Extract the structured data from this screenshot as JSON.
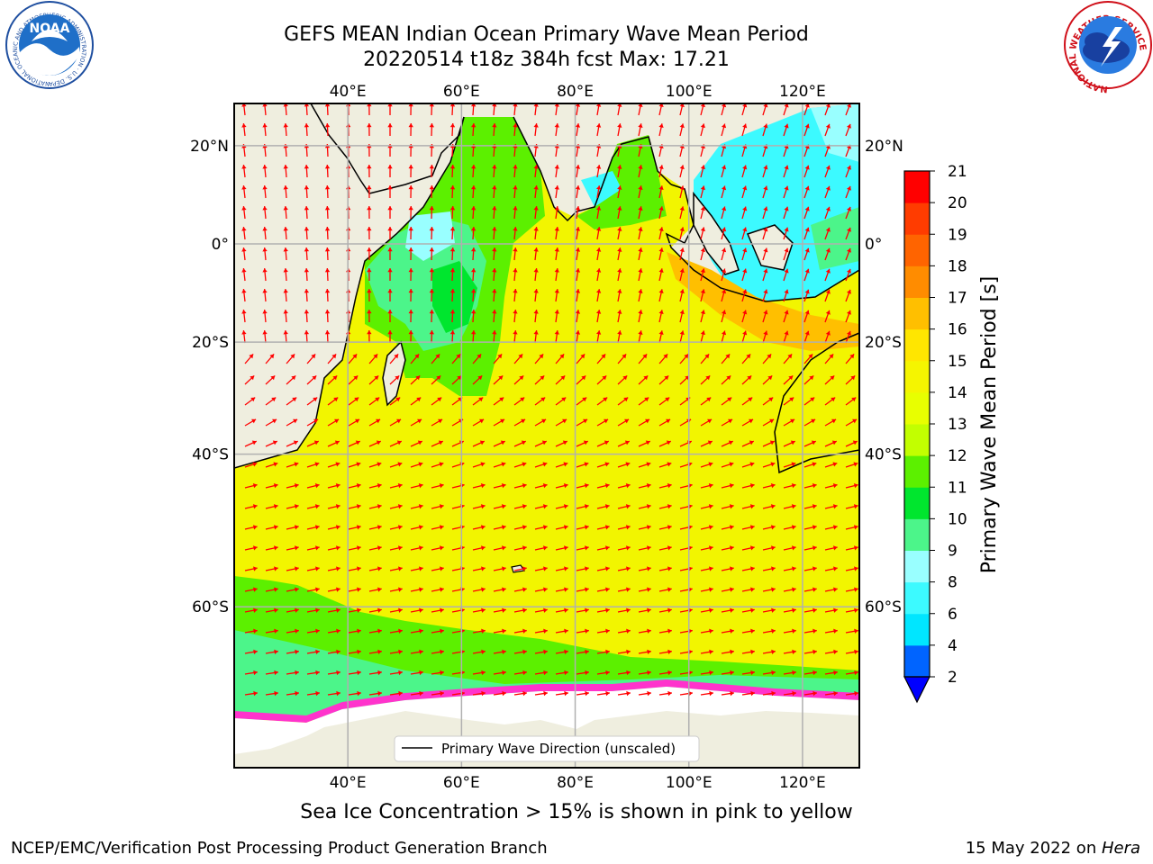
{
  "title": {
    "line1": "GEFS MEAN Indian Ocean Primary Wave Mean Period",
    "line2": "20220514 t18z 384h fcst   Max: 17.21"
  },
  "map": {
    "lon_ticks": [
      "40°E",
      "60°E",
      "80°E",
      "100°E",
      "120°E"
    ],
    "lat_ticks": [
      "20°N",
      "0°",
      "20°S",
      "40°S",
      "60°S"
    ],
    "lon_range": [
      20,
      130
    ],
    "lat_range": [
      -73,
      28
    ],
    "legend_label": "Primary Wave Direction (unscaled)",
    "land_color": "#efeedf",
    "ice_color": "#ffffff",
    "arrow_color": "#ff0000"
  },
  "colorbar": {
    "label": "Primary Wave Mean Period [s]",
    "ticks": [
      "2",
      "4",
      "6",
      "8",
      "9",
      "10",
      "11",
      "12",
      "13",
      "14",
      "15",
      "16",
      "17",
      "18",
      "19",
      "20",
      "21"
    ],
    "colors": [
      "#0064ff",
      "#00e6ff",
      "#3cfaff",
      "#99ffff",
      "#4cf58a",
      "#00e62e",
      "#5cf000",
      "#c2ff00",
      "#e8ff00",
      "#f5f500",
      "#ffe600",
      "#ffbf00",
      "#ff8c00",
      "#ff6400",
      "#ff3c00",
      "#ff0000"
    ],
    "under_color": "#0000ff"
  },
  "footer": {
    "sea_ice_note": "Sea Ice Concentration > 15% is shown in pink to yellow",
    "credit": "NCEP/EMC/Verification Post Processing Product Generation Branch",
    "date_prefix": "15 May 2022 on ",
    "date_host": "Hera"
  },
  "logos": {
    "noaa_text": "NOAA",
    "noaa_ring_text": "NATIONAL OCEANIC AND ATMOSPHERIC ADMINISTRATION · U.S. DEPARTMENT OF COMMERCE",
    "nws_ring_text": "NATIONAL WEATHER SERVICE"
  }
}
